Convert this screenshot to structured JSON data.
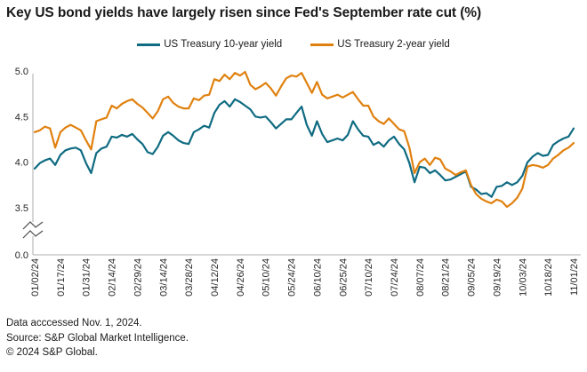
{
  "title": "Key US bond yields have largely risen since Fed's September rate cut (%)",
  "footer": {
    "line1": "Data acccessed Nov. 1, 2024.",
    "line2": "Source: S&P Global Market Intelligence.",
    "line3": "© 2024 S&P Global."
  },
  "chart_data": {
    "type": "line",
    "title": "Key US bond yields have largely risen since Fed's September rate cut (%)",
    "unit": "%",
    "legend_position": "top-center",
    "grid": false,
    "axis_break": true,
    "ylim_display": [
      3.5,
      5.0
    ],
    "y_baseline_label": "0.0",
    "y_ticks": [
      "5.0",
      "4.5",
      "4.0",
      "3.5"
    ],
    "x_ticks": [
      "01/02/24",
      "01/17/24",
      "01/31/24",
      "02/14/24",
      "02/29/24",
      "03/14/24",
      "03/28/24",
      "04/12/24",
      "04/26/24",
      "05/10/24",
      "05/24/24",
      "06/10/24",
      "06/25/24",
      "07/10/24",
      "07/24/24",
      "08/07/24",
      "08/21/24",
      "09/05/24",
      "09/19/24",
      "10/03/24",
      "10/18/24",
      "11/01/24"
    ],
    "series": [
      {
        "name": "US Treasury 10-year yield",
        "color": "#0f6b82",
        "values": [
          3.93,
          3.99,
          4.02,
          4.04,
          3.97,
          4.08,
          4.13,
          4.15,
          4.16,
          4.13,
          3.99,
          3.88,
          4.1,
          4.15,
          4.17,
          4.28,
          4.27,
          4.3,
          4.28,
          4.31,
          4.25,
          4.2,
          4.11,
          4.09,
          4.17,
          4.29,
          4.33,
          4.29,
          4.24,
          4.21,
          4.2,
          4.33,
          4.36,
          4.4,
          4.38,
          4.54,
          4.63,
          4.67,
          4.61,
          4.69,
          4.66,
          4.62,
          4.58,
          4.5,
          4.49,
          4.5,
          4.44,
          4.37,
          4.42,
          4.47,
          4.47,
          4.54,
          4.61,
          4.41,
          4.29,
          4.45,
          4.31,
          4.22,
          4.24,
          4.26,
          4.24,
          4.3,
          4.45,
          4.36,
          4.29,
          4.28,
          4.19,
          4.22,
          4.17,
          4.24,
          4.28,
          4.2,
          4.14,
          3.99,
          3.78,
          3.95,
          3.94,
          3.88,
          3.91,
          3.86,
          3.8,
          3.81,
          3.84,
          3.87,
          3.9,
          3.73,
          3.7,
          3.65,
          3.66,
          3.62,
          3.73,
          3.74,
          3.78,
          3.75,
          3.78,
          3.85,
          4.0,
          4.06,
          4.1,
          4.07,
          4.08,
          4.19,
          4.23,
          4.26,
          4.28,
          4.37
        ]
      },
      {
        "name": "US Treasury 2-year yield",
        "color": "#e0810f",
        "values": [
          4.33,
          4.35,
          4.39,
          4.37,
          4.16,
          4.33,
          4.38,
          4.41,
          4.38,
          4.35,
          4.24,
          4.14,
          4.45,
          4.47,
          4.49,
          4.62,
          4.59,
          4.64,
          4.67,
          4.69,
          4.64,
          4.6,
          4.54,
          4.48,
          4.56,
          4.69,
          4.72,
          4.65,
          4.61,
          4.59,
          4.59,
          4.7,
          4.68,
          4.73,
          4.74,
          4.91,
          4.89,
          4.96,
          4.91,
          4.98,
          4.95,
          4.99,
          4.85,
          4.8,
          4.83,
          4.87,
          4.81,
          4.73,
          4.83,
          4.92,
          4.95,
          4.94,
          4.98,
          4.87,
          4.76,
          4.88,
          4.74,
          4.7,
          4.72,
          4.74,
          4.71,
          4.74,
          4.77,
          4.69,
          4.62,
          4.62,
          4.5,
          4.45,
          4.42,
          4.48,
          4.42,
          4.36,
          4.34,
          4.16,
          3.88,
          4.0,
          4.04,
          3.97,
          4.05,
          4.03,
          3.93,
          3.9,
          3.86,
          3.89,
          3.91,
          3.75,
          3.65,
          3.6,
          3.57,
          3.55,
          3.59,
          3.57,
          3.51,
          3.55,
          3.61,
          3.71,
          3.95,
          3.97,
          3.96,
          3.94,
          3.97,
          4.04,
          4.08,
          4.13,
          4.16,
          4.21
        ]
      }
    ]
  }
}
